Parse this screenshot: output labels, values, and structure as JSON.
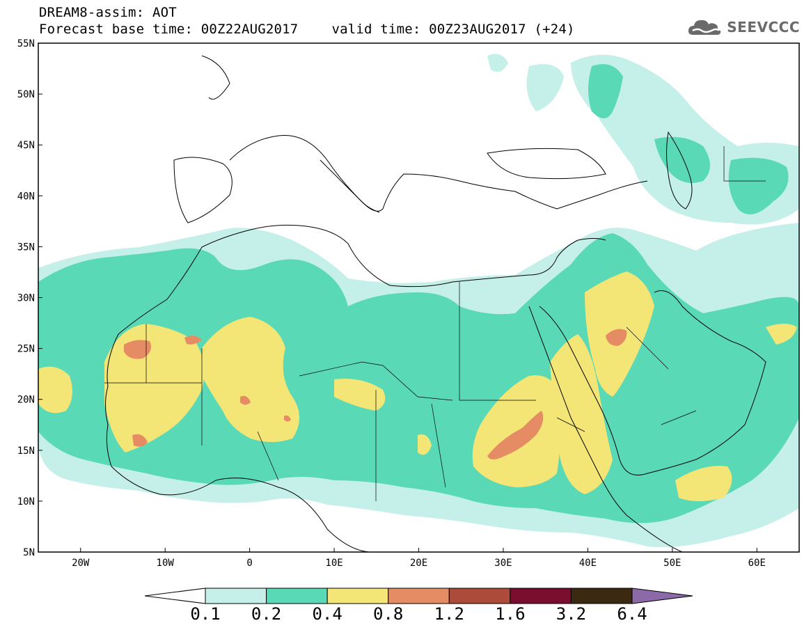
{
  "title": {
    "line1": "DREAM8-assim: AOT",
    "base_time": "Forecast base time: 00Z22AUG2017",
    "valid_time": "valid time: 00Z23AUG2017 (+24)"
  },
  "logo": {
    "text": "SEEVCCC",
    "icon": "cloud-icon"
  },
  "map": {
    "lat_ticks": [
      "5N",
      "10N",
      "15N",
      "20N",
      "25N",
      "30N",
      "35N",
      "40N",
      "45N",
      "50N",
      "55N"
    ],
    "lon_ticks": [
      "20W",
      "10W",
      "0",
      "10E",
      "20E",
      "30E",
      "40E",
      "50E",
      "60E"
    ],
    "lon_range": [
      -25,
      65
    ],
    "lat_range": [
      5,
      55
    ]
  },
  "colorbar": {
    "labels": [
      "0.1",
      "0.2",
      "0.4",
      "0.8",
      "1.2",
      "1.6",
      "3.2",
      "6.4"
    ],
    "colors": [
      "#ffffff",
      "#c5efe9",
      "#5ad9b6",
      "#f4e577",
      "#e68c65",
      "#ad4b3a",
      "#7a0e2f",
      "#3c2912",
      "#8c6aa8"
    ]
  },
  "field_colors": {
    "c01": "#c5efe9",
    "c02": "#5ad9b6",
    "c04": "#f4e577",
    "c08": "#e68c65"
  }
}
